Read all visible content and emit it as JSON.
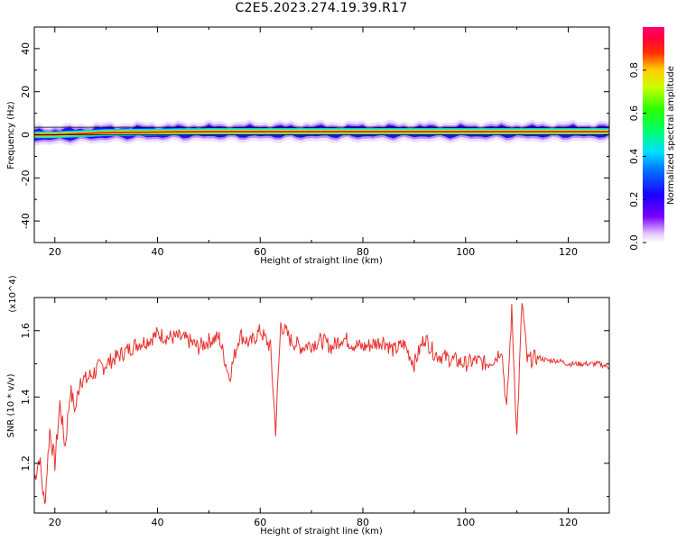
{
  "title": "C2E5.2023.274.19.39.R17",
  "chart_data": [
    {
      "type": "heatmap",
      "xlabel": "Height of straight line (km)",
      "ylabel": "Frequency (Hz)",
      "xlim": [
        16,
        128
      ],
      "ylim": [
        -50,
        50
      ],
      "x_ticks": [
        20,
        40,
        60,
        80,
        100,
        120
      ],
      "y_ticks": [
        -40,
        -20,
        0,
        20,
        40
      ],
      "colorbar": {
        "label": "Normalized spectral amplitude",
        "range": [
          0,
          1
        ],
        "ticks": [
          0.0,
          0.2,
          0.4,
          0.6,
          0.8
        ],
        "colormap": "rainbow (white-violet-blue-cyan-green-yellow-red-magenta)"
      },
      "annotations": "narrow band of maximum amplitude near 0-2 Hz across all heights; horizontal lines at ~4 Hz and ~0 Hz",
      "band_center_hz": [
        {
          "x": 16,
          "y": 0
        },
        {
          "x": 20,
          "y": 0
        },
        {
          "x": 30,
          "y": 1
        },
        {
          "x": 50,
          "y": 1.5
        },
        {
          "x": 70,
          "y": 1.5
        },
        {
          "x": 90,
          "y": 1.5
        },
        {
          "x": 110,
          "y": 1.5
        },
        {
          "x": 128,
          "y": 1.5
        }
      ]
    },
    {
      "type": "line",
      "xlabel": "Height of straight line (km)",
      "ylabel": "SNR (10 * v/v)",
      "yscale_label": "(x10^4)",
      "xlim": [
        16,
        128
      ],
      "ylim": [
        1.05,
        1.7
      ],
      "x_ticks": [
        20,
        40,
        60,
        80,
        100,
        120
      ],
      "y_ticks": [
        1.2,
        1.4,
        1.6
      ],
      "color": "#e8302c",
      "series": [
        {
          "x": [
            16,
            17,
            18,
            19,
            20,
            21,
            22,
            23,
            24,
            25,
            26,
            28,
            30,
            32,
            34,
            36,
            38,
            40,
            42,
            44,
            46,
            48,
            50,
            52,
            54,
            56,
            58,
            60,
            62,
            63,
            64,
            66,
            68,
            70,
            72,
            74,
            76,
            78,
            80,
            82,
            84,
            86,
            88,
            90,
            92,
            94,
            96,
            98,
            100,
            102,
            104,
            106,
            107,
            108,
            109,
            110,
            111,
            112,
            114,
            116,
            118,
            120,
            122,
            124,
            126,
            128
          ],
          "values": [
            1.15,
            1.22,
            1.07,
            1.3,
            1.2,
            1.38,
            1.25,
            1.42,
            1.36,
            1.46,
            1.45,
            1.48,
            1.5,
            1.52,
            1.54,
            1.56,
            1.57,
            1.59,
            1.58,
            1.58,
            1.57,
            1.55,
            1.57,
            1.58,
            1.46,
            1.59,
            1.56,
            1.6,
            1.55,
            1.3,
            1.62,
            1.57,
            1.55,
            1.56,
            1.57,
            1.55,
            1.58,
            1.56,
            1.55,
            1.56,
            1.57,
            1.54,
            1.56,
            1.5,
            1.58,
            1.53,
            1.52,
            1.51,
            1.5,
            1.51,
            1.5,
            1.52,
            1.55,
            1.36,
            1.66,
            1.28,
            1.69,
            1.51,
            1.52,
            1.51,
            1.51,
            1.5,
            1.5,
            1.5,
            1.5,
            1.49
          ]
        }
      ]
    }
  ]
}
